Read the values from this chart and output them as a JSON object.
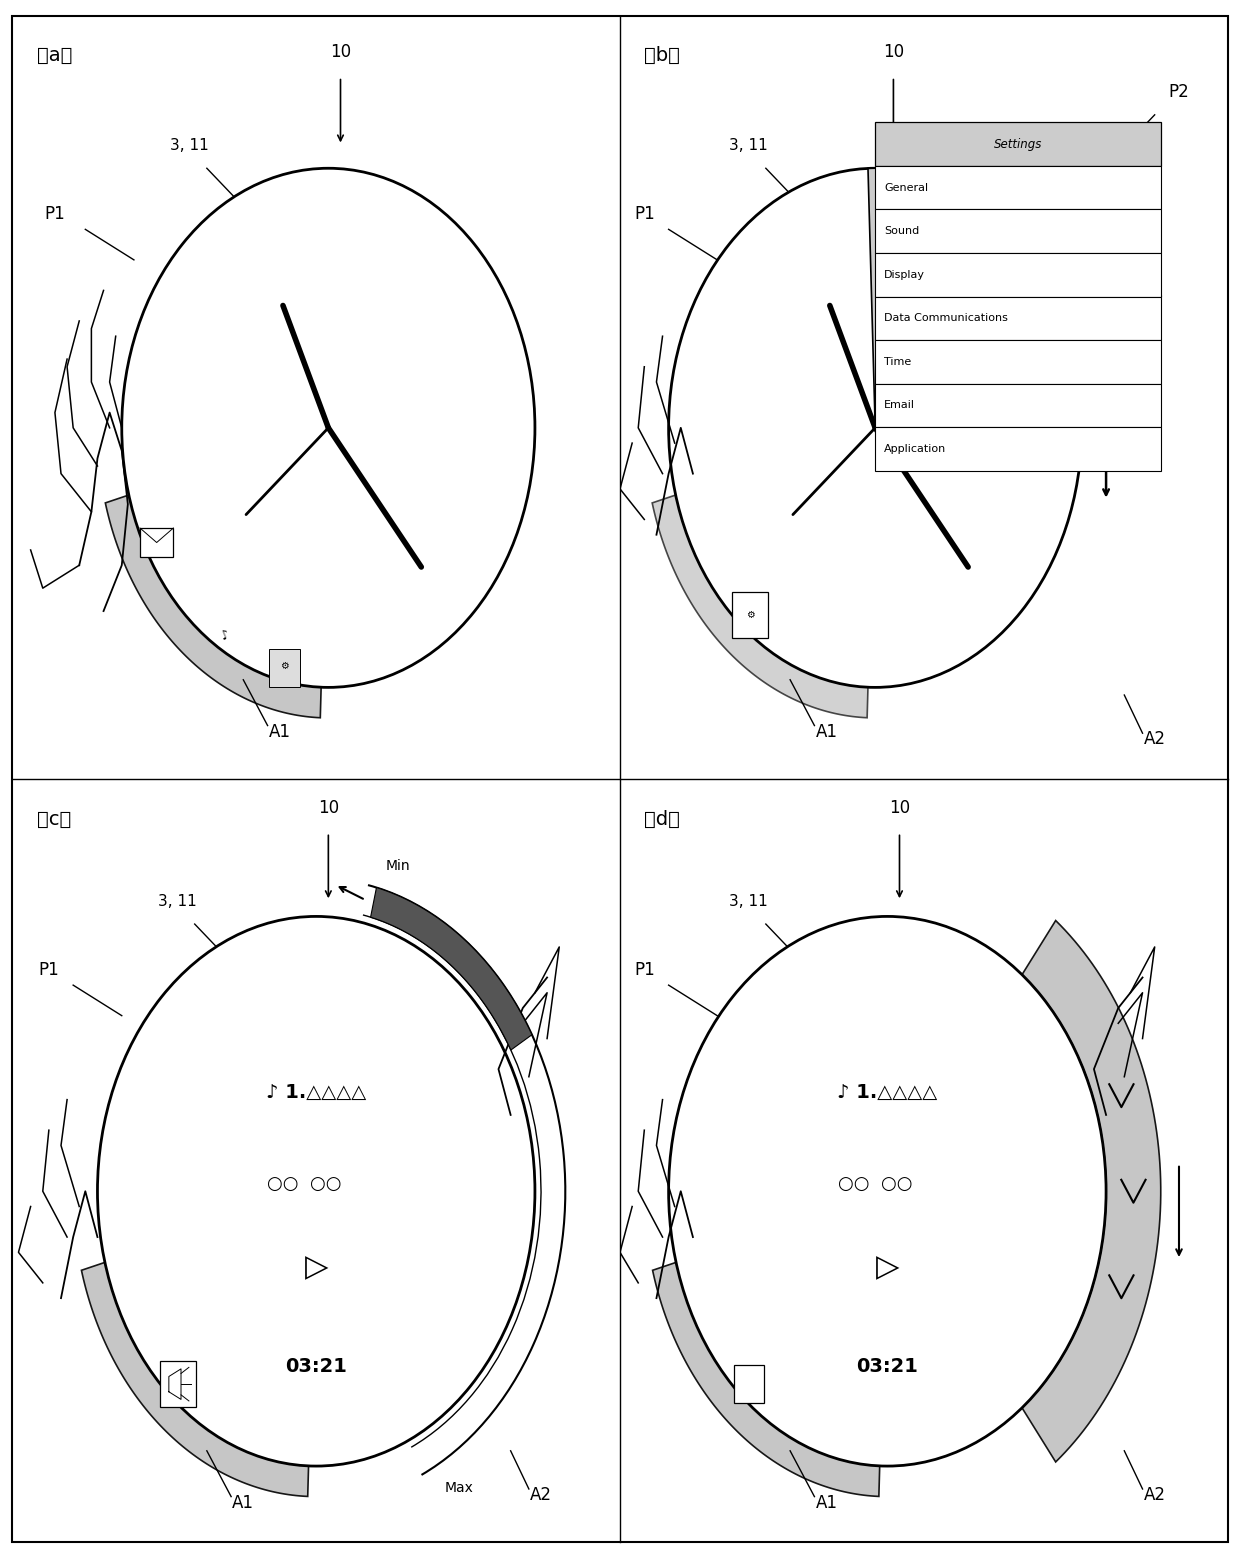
{
  "bg_color": "#ffffff",
  "border_color": "#000000",
  "menu_items_b": [
    "Settings",
    "General",
    "Sound",
    "Display",
    "Data Communications",
    "Time",
    "Email",
    "Application"
  ],
  "music_title": "♪ 1.△△△△",
  "music_circles": "○○  ○○",
  "music_play": "▷",
  "music_time": "03:21",
  "label_10": "10",
  "label_311": "3, 11",
  "label_P1": "P1",
  "label_P2": "P2",
  "label_A1": "A1",
  "label_A2": "A2",
  "label_Min": "Min",
  "label_Max": "Max"
}
